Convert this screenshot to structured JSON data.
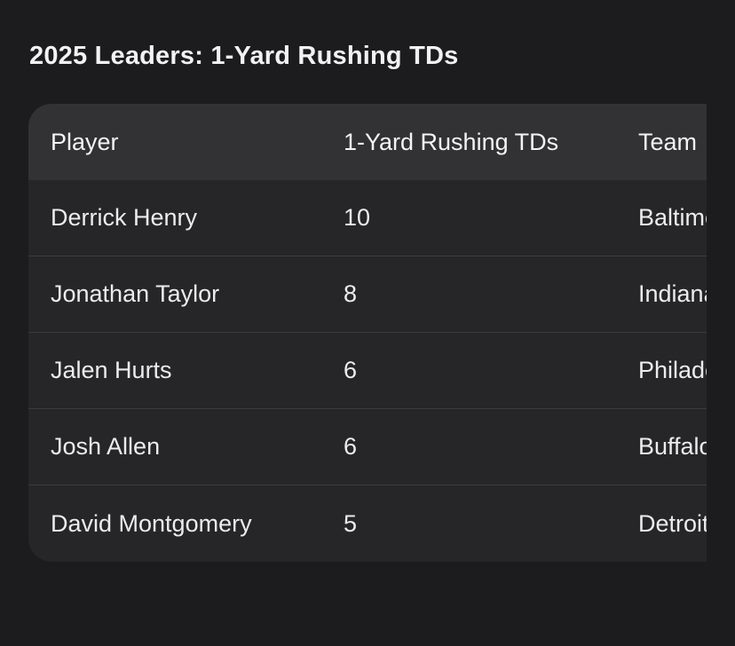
{
  "title": "2025 Leaders: 1-Yard Rushing TDs",
  "table": {
    "headers": [
      "Player",
      "1-Yard Rushing TDs",
      "Team"
    ],
    "rows": [
      {
        "player": "Derrick Henry",
        "tds": "10",
        "team": "Baltimore Ravens"
      },
      {
        "player": "Jonathan Taylor",
        "tds": "8",
        "team": "Indianapolis Colts"
      },
      {
        "player": "Jalen Hurts",
        "tds": "6",
        "team": "Philadelphia Eagles"
      },
      {
        "player": "Josh Allen",
        "tds": "6",
        "team": "Buffalo Bills"
      },
      {
        "player": "David Montgomery",
        "tds": "5",
        "team": "Detroit Lions"
      }
    ]
  }
}
